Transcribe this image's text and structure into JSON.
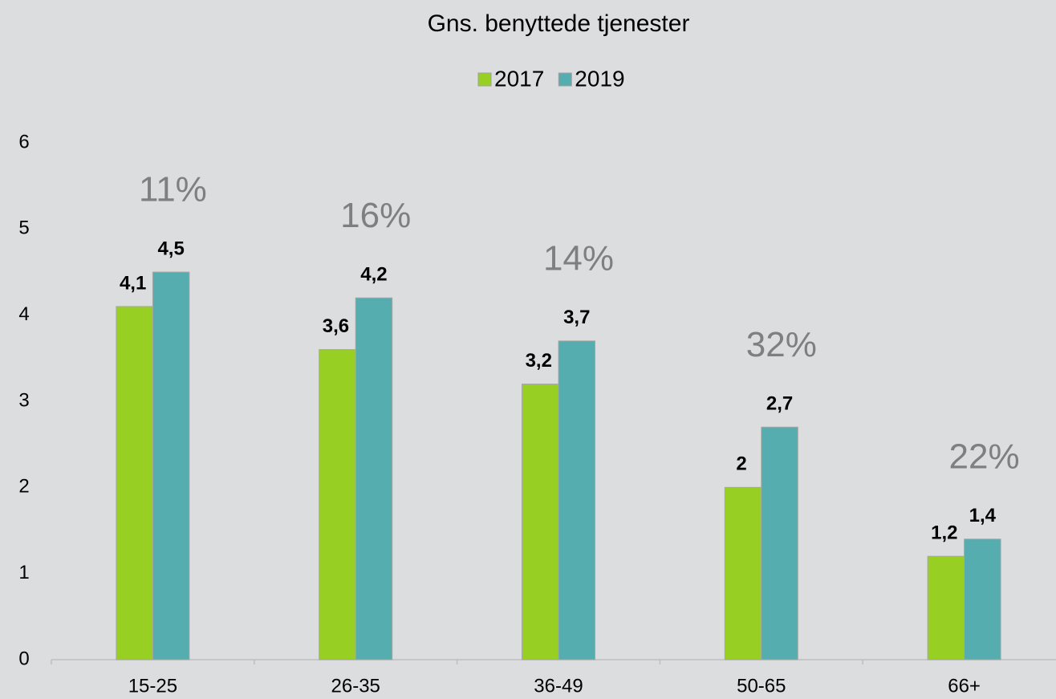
{
  "chart_data": {
    "type": "bar",
    "title": "Gns. benyttede tjenester",
    "categories": [
      "15-25",
      "26-35",
      "36-49",
      "50-65",
      "66+"
    ],
    "series": [
      {
        "name": "2017",
        "color": "#97cf22",
        "values": [
          4.1,
          3.6,
          3.2,
          2,
          1.2
        ],
        "value_labels": [
          "4,1",
          "3,6",
          "3,2",
          "2",
          "1,2"
        ]
      },
      {
        "name": "2019",
        "color": "#55adb0",
        "values": [
          4.5,
          4.2,
          3.7,
          2.7,
          1.4
        ],
        "value_labels": [
          "4,5",
          "4,2",
          "3,7",
          "2,7",
          "1,4"
        ]
      }
    ],
    "annotations": [
      "11%",
      "16%",
      "14%",
      "32%",
      "22%"
    ],
    "ylim": [
      0,
      6
    ],
    "yticks": [
      0,
      1,
      2,
      3,
      4,
      5,
      6
    ],
    "grid": false,
    "legend": "top"
  }
}
